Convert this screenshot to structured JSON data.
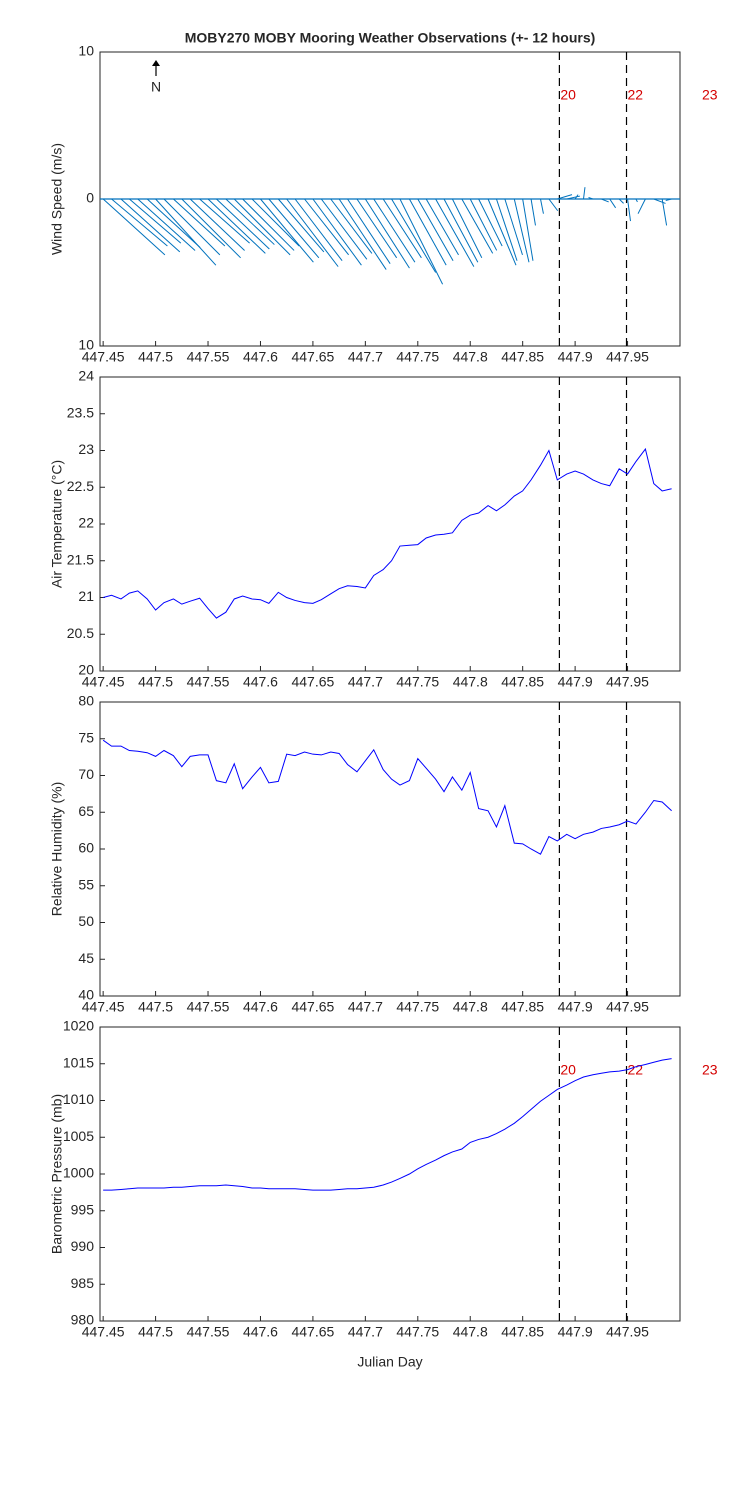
{
  "chart_data": [
    {
      "type": "stick",
      "title": "MOBY270 MOBY Mooring Weather Observations (+- 12 hours)",
      "y_label": "Wind Speed (m/s)",
      "annotation": "N",
      "color": "#0072bd",
      "xlim": [
        447.447,
        448.0
      ],
      "xticks": [
        447.45,
        447.5,
        447.55,
        447.6,
        447.65,
        447.7,
        447.75,
        447.8,
        447.85,
        447.9,
        447.95
      ],
      "ylim": [
        -10,
        10
      ],
      "yticks": [
        {
          "value": -10,
          "label": "10"
        },
        0,
        10
      ],
      "marker_x": [
        447.885,
        447.949,
        448.02
      ],
      "marker_labels": [
        "20",
        "22",
        "23"
      ],
      "x": [
        447.45,
        447.458,
        447.467,
        447.475,
        447.483,
        447.492,
        447.5,
        447.508,
        447.517,
        447.525,
        447.533,
        447.542,
        447.55,
        447.558,
        447.567,
        447.575,
        447.583,
        447.592,
        447.6,
        447.608,
        447.617,
        447.625,
        447.633,
        447.642,
        447.65,
        447.658,
        447.667,
        447.675,
        447.683,
        447.692,
        447.7,
        447.708,
        447.717,
        447.725,
        447.733,
        447.742,
        447.75,
        447.758,
        447.767,
        447.775,
        447.783,
        447.792,
        447.8,
        447.808,
        447.817,
        447.825,
        447.833,
        447.842,
        447.85,
        447.858,
        447.867,
        447.875,
        447.883,
        447.892,
        447.9,
        447.908,
        447.917,
        447.925,
        447.933,
        447.942,
        447.95,
        447.958,
        447.967,
        447.975,
        447.983,
        447.992
      ],
      "u": [
        4.2,
        3.8,
        4.0,
        3.5,
        3.9,
        3.6,
        4.1,
        3.8,
        3.5,
        4.0,
        3.7,
        3.4,
        3.9,
        3.6,
        3.3,
        3.8,
        3.5,
        3.2,
        3.6,
        3.4,
        3.1,
        3.5,
        3.2,
        3.0,
        3.3,
        3.1,
        2.8,
        3.2,
        2.9,
        2.7,
        3.0,
        2.8,
        2.6,
        3.0,
        2.9,
        2.5,
        2.4,
        2.2,
        2.6,
        2.3,
        2.0,
        2.1,
        1.8,
        1.6,
        1.9,
        1.4,
        1.2,
        1.0,
        0.7,
        0.3,
        0.2,
        0.6,
        1.0,
        0.9,
        0.2,
        0.1,
        -0.3,
        0.5,
        0.4,
        0.3,
        0.2,
        0.1,
        -0.5,
        0.8,
        0.3,
        -0.4
      ],
      "v": [
        -3.8,
        -3.2,
        -3.6,
        -3.0,
        -3.5,
        -3.3,
        -4.5,
        -3.8,
        -3.2,
        -4.0,
        -3.5,
        -3.0,
        -3.7,
        -3.4,
        -3.1,
        -3.8,
        -3.5,
        -3.2,
        -4.3,
        -4.0,
        -3.6,
        -4.6,
        -4.2,
        -3.8,
        -4.5,
        -4.1,
        -3.7,
        -4.8,
        -4.4,
        -4.0,
        -4.7,
        -4.3,
        -4.0,
        -5.0,
        -5.8,
        -4.5,
        -4.2,
        -3.8,
        -4.6,
        -4.3,
        -4.0,
        -3.7,
        -3.5,
        -3.2,
        -4.5,
        -4.2,
        -3.8,
        -4.3,
        -4.2,
        -1.8,
        -1.0,
        -0.8,
        0.3,
        0.2,
        0.3,
        0.8,
        0.1,
        -0.2,
        -0.6,
        -0.3,
        -1.5,
        -0.2,
        -1.0,
        -0.3,
        -1.8,
        -0.1
      ]
    },
    {
      "type": "line",
      "y_label": "Air Temperature (°C)",
      "color": "#0000ff",
      "xlim": [
        447.447,
        448.0
      ],
      "xticks": [
        447.45,
        447.5,
        447.55,
        447.6,
        447.65,
        447.7,
        447.75,
        447.8,
        447.85,
        447.9,
        447.95
      ],
      "ylim": [
        20,
        24
      ],
      "yticks": [
        20,
        20.5,
        21,
        21.5,
        22,
        22.5,
        23,
        23.5,
        24
      ],
      "marker_x": [
        447.885,
        447.949
      ],
      "x": [
        447.45,
        447.458,
        447.467,
        447.475,
        447.483,
        447.492,
        447.5,
        447.508,
        447.517,
        447.525,
        447.533,
        447.542,
        447.55,
        447.558,
        447.567,
        447.575,
        447.583,
        447.592,
        447.6,
        447.608,
        447.617,
        447.625,
        447.633,
        447.642,
        447.65,
        447.658,
        447.667,
        447.675,
        447.683,
        447.692,
        447.7,
        447.708,
        447.717,
        447.725,
        447.733,
        447.742,
        447.75,
        447.758,
        447.767,
        447.775,
        447.783,
        447.792,
        447.8,
        447.808,
        447.817,
        447.825,
        447.833,
        447.842,
        447.85,
        447.858,
        447.867,
        447.875,
        447.883,
        447.892,
        447.9,
        447.908,
        447.917,
        447.925,
        447.933,
        447.942,
        447.95,
        447.958,
        447.967,
        447.975,
        447.983,
        447.992
      ],
      "values": [
        21.0,
        21.03,
        20.98,
        21.06,
        21.09,
        20.98,
        20.83,
        20.93,
        20.98,
        20.91,
        20.95,
        20.99,
        20.85,
        20.72,
        20.8,
        20.98,
        21.02,
        20.98,
        20.97,
        20.92,
        21.07,
        21.0,
        20.96,
        20.93,
        20.92,
        20.97,
        21.05,
        21.12,
        21.16,
        21.15,
        21.13,
        21.3,
        21.38,
        21.5,
        21.7,
        21.71,
        21.72,
        21.81,
        21.85,
        21.86,
        21.88,
        22.05,
        22.12,
        22.15,
        22.25,
        22.18,
        22.26,
        22.38,
        22.45,
        22.6,
        22.8,
        23.0,
        22.6,
        22.68,
        22.72,
        22.68,
        22.6,
        22.55,
        22.52,
        22.75,
        22.68,
        22.85,
        23.02,
        22.55,
        22.45,
        22.48
      ]
    },
    {
      "type": "line",
      "y_label": "Relative Humidity (%)",
      "color": "#0000ff",
      "xlim": [
        447.447,
        448.0
      ],
      "xticks": [
        447.45,
        447.5,
        447.55,
        447.6,
        447.65,
        447.7,
        447.75,
        447.8,
        447.85,
        447.9,
        447.95
      ],
      "ylim": [
        40,
        80
      ],
      "yticks": [
        40,
        45,
        50,
        55,
        60,
        65,
        70,
        75,
        80
      ],
      "marker_x": [
        447.885,
        447.949
      ],
      "x": [
        447.45,
        447.458,
        447.467,
        447.475,
        447.483,
        447.492,
        447.5,
        447.508,
        447.517,
        447.525,
        447.533,
        447.542,
        447.55,
        447.558,
        447.567,
        447.575,
        447.583,
        447.592,
        447.6,
        447.608,
        447.617,
        447.625,
        447.633,
        447.642,
        447.65,
        447.658,
        447.667,
        447.675,
        447.683,
        447.692,
        447.7,
        447.708,
        447.717,
        447.725,
        447.733,
        447.742,
        447.75,
        447.758,
        447.767,
        447.775,
        447.783,
        447.792,
        447.8,
        447.808,
        447.817,
        447.825,
        447.833,
        447.842,
        447.85,
        447.858,
        447.867,
        447.875,
        447.883,
        447.892,
        447.9,
        447.908,
        447.917,
        447.925,
        447.933,
        447.942,
        447.95,
        447.958,
        447.967,
        447.975,
        447.983,
        447.992
      ],
      "values": [
        74.8,
        74.0,
        74.0,
        73.4,
        73.3,
        73.1,
        72.6,
        73.4,
        72.7,
        71.2,
        72.6,
        72.8,
        72.8,
        69.3,
        69.0,
        71.6,
        68.2,
        69.8,
        71.1,
        69.0,
        69.2,
        72.9,
        72.7,
        73.2,
        72.9,
        72.8,
        73.2,
        73.0,
        71.5,
        70.5,
        72.0,
        73.5,
        70.8,
        69.5,
        68.7,
        69.3,
        72.3,
        71.0,
        69.5,
        67.8,
        69.8,
        68.0,
        70.4,
        65.5,
        65.2,
        63.0,
        65.9,
        60.8,
        60.7,
        60.0,
        59.3,
        61.7,
        61.1,
        62.0,
        61.4,
        62.0,
        62.3,
        62.8,
        63.0,
        63.3,
        63.8,
        63.4,
        65.0,
        66.6,
        66.4,
        65.2
      ]
    },
    {
      "type": "line",
      "y_label": "Barometric Pressure (mb)",
      "x_label": "Julian Day",
      "color": "#0000ff",
      "xlim": [
        447.447,
        448.0
      ],
      "xticks": [
        447.45,
        447.5,
        447.55,
        447.6,
        447.65,
        447.7,
        447.75,
        447.8,
        447.85,
        447.9,
        447.95
      ],
      "ylim": [
        980,
        1020
      ],
      "yticks": [
        980,
        985,
        990,
        995,
        1000,
        1005,
        1010,
        1015,
        1020
      ],
      "marker_x": [
        447.885,
        447.949,
        448.02
      ],
      "marker_labels": [
        "20",
        "22",
        "23"
      ],
      "x": [
        447.45,
        447.458,
        447.467,
        447.475,
        447.483,
        447.492,
        447.5,
        447.508,
        447.517,
        447.525,
        447.533,
        447.542,
        447.55,
        447.558,
        447.567,
        447.575,
        447.583,
        447.592,
        447.6,
        447.608,
        447.617,
        447.625,
        447.633,
        447.642,
        447.65,
        447.658,
        447.667,
        447.675,
        447.683,
        447.692,
        447.7,
        447.708,
        447.717,
        447.725,
        447.733,
        447.742,
        447.75,
        447.758,
        447.767,
        447.775,
        447.783,
        447.792,
        447.8,
        447.808,
        447.817,
        447.825,
        447.833,
        447.842,
        447.85,
        447.858,
        447.867,
        447.875,
        447.883,
        447.892,
        447.9,
        447.908,
        447.917,
        447.925,
        447.933,
        447.942,
        447.95,
        447.958,
        447.967,
        447.975,
        447.983,
        447.992
      ],
      "values": [
        997.8,
        997.8,
        997.9,
        998.0,
        998.1,
        998.1,
        998.1,
        998.1,
        998.2,
        998.2,
        998.3,
        998.4,
        998.4,
        998.4,
        998.5,
        998.4,
        998.3,
        998.1,
        998.1,
        998.0,
        998.0,
        998.0,
        998.0,
        997.9,
        997.8,
        997.8,
        997.8,
        997.9,
        998.0,
        998.0,
        998.1,
        998.2,
        998.5,
        998.9,
        999.4,
        1000.0,
        1000.7,
        1001.3,
        1001.9,
        1002.5,
        1003.0,
        1003.4,
        1004.3,
        1004.7,
        1005.0,
        1005.5,
        1006.1,
        1006.9,
        1007.8,
        1008.8,
        1009.9,
        1010.7,
        1011.5,
        1012.1,
        1012.7,
        1013.2,
        1013.5,
        1013.7,
        1013.9,
        1014.0,
        1014.2,
        1014.6,
        1014.9,
        1015.2,
        1015.5,
        1015.7
      ]
    }
  ]
}
